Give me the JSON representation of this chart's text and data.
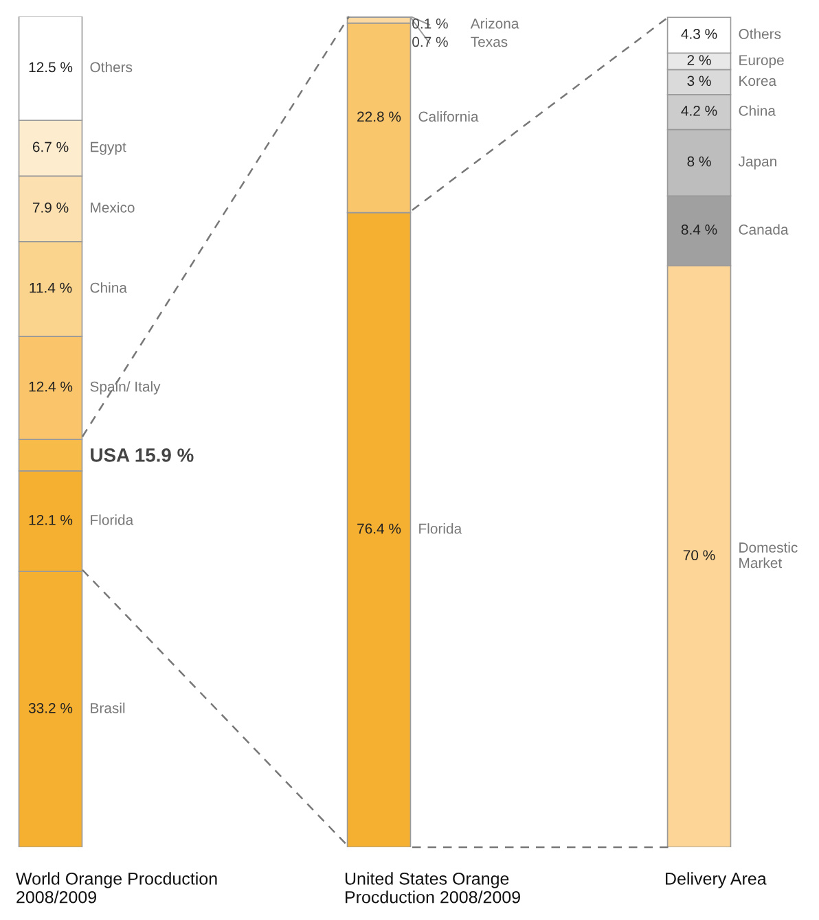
{
  "chart_data": [
    {
      "type": "bar",
      "stacked": true,
      "categories": [
        null
      ],
      "xlabel": "World Orange Procduction\n2008/2009",
      "ylim": [
        0,
        100
      ],
      "series": [
        {
          "name": "Brasil",
          "color": "#f5b031",
          "values": [
            33.2
          ],
          "value_labels": [
            "33.2 %"
          ]
        },
        {
          "name": "Florida",
          "color": "#f5b031",
          "values": [
            12.1
          ],
          "value_labels": [
            "12.1 %"
          ]
        },
        {
          "color": "#f7bb4a",
          "values": [
            3.8
          ]
        },
        {
          "name": "Spain/ Italy",
          "color": "#f9c46a",
          "values": [
            12.4
          ],
          "value_labels": [
            "12.4 %"
          ]
        },
        {
          "name": "China",
          "color": "#fad38c",
          "values": [
            11.4
          ],
          "value_labels": [
            "11.4 %"
          ]
        },
        {
          "name": "Mexico",
          "color": "#fce0b0",
          "values": [
            7.9
          ],
          "value_labels": [
            "7.9 %"
          ]
        },
        {
          "name": "Egypt",
          "color": "#feeccf",
          "values": [
            6.7
          ],
          "value_labels": [
            "6.7 %"
          ]
        },
        {
          "name": "Others",
          "color": "#ffffff",
          "values": [
            12.5
          ],
          "value_labels": [
            "12.5 %"
          ]
        }
      ],
      "annotations": [
        "USA 15.9 %"
      ]
    },
    {
      "type": "bar",
      "stacked": true,
      "categories": [
        null
      ],
      "xlabel": "United States Orange\nProcduction 2008/2009",
      "ylim": [
        0,
        100
      ],
      "series": [
        {
          "name": "Florida",
          "color": "#f5b031",
          "values": [
            76.4
          ],
          "value_labels": [
            "76.4 %"
          ]
        },
        {
          "name": "California",
          "color": "#fac66b",
          "values": [
            22.8
          ],
          "value_labels": [
            "22.8 %"
          ]
        },
        {
          "name": "Texas",
          "color": "#fcd9a0",
          "values": [
            0.7
          ],
          "value_labels": [
            "0.7 %"
          ]
        },
        {
          "name": "Arizona",
          "color": "#fde7c2",
          "values": [
            0.1
          ],
          "value_labels": [
            "0.1 %"
          ]
        }
      ]
    },
    {
      "type": "bar",
      "stacked": true,
      "categories": [
        null
      ],
      "xlabel": "Delivery Area",
      "ylim": [
        0,
        100
      ],
      "series": [
        {
          "name": "Domestic\nMarket",
          "color": "#fdd596",
          "values": [
            70
          ],
          "value_labels": [
            "70 %"
          ]
        },
        {
          "name": "Canada",
          "color": "#a0a0a0",
          "values": [
            8.4
          ],
          "value_labels": [
            "8.4 %"
          ]
        },
        {
          "name": "Japan",
          "color": "#bdbdbd",
          "values": [
            8
          ],
          "value_labels": [
            "8 %"
          ]
        },
        {
          "name": "China",
          "color": "#cccccc",
          "values": [
            4.2
          ],
          "value_labels": [
            "4.2 %"
          ]
        },
        {
          "name": "Korea",
          "color": "#dadada",
          "values": [
            3
          ],
          "value_labels": [
            "3 %"
          ]
        },
        {
          "name": "Europe",
          "color": "#e8e8e8",
          "values": [
            2
          ],
          "value_labels": [
            "2 %"
          ]
        },
        {
          "name": "Others",
          "color": "#ffffff",
          "values": [
            4.3
          ],
          "value_labels": [
            "4.3 %"
          ]
        }
      ]
    }
  ]
}
